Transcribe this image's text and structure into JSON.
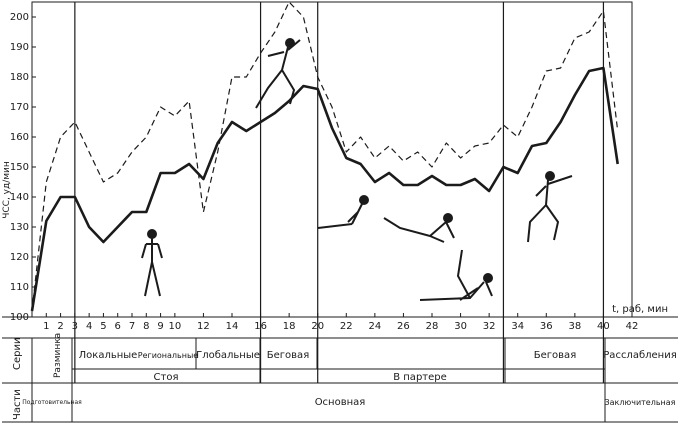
{
  "chart_data": {
    "type": "line",
    "ylabel": "ЧСС, уд/мин",
    "xlabel": "t, раб, мин",
    "ylim": [
      100,
      205
    ],
    "xlim": [
      0,
      42
    ],
    "yticks": [
      "100",
      "110",
      "120",
      "130",
      "140",
      "150",
      "160",
      "170",
      "180",
      "190",
      "200"
    ],
    "xticks": [
      "1",
      "2",
      "3",
      "4",
      "5",
      "6",
      "7",
      "8",
      "9",
      "10",
      "12",
      "14",
      "16",
      "18",
      "20",
      "22",
      "24",
      "26",
      "28",
      "30",
      "32",
      "34",
      "36",
      "38",
      "40",
      "42"
    ],
    "grid": false,
    "series": [
      {
        "style": "solid",
        "x": [
          0,
          1,
          2,
          3,
          4,
          5,
          6,
          7,
          8,
          9,
          10,
          11,
          12,
          13,
          14,
          15,
          16,
          17,
          18,
          19,
          20,
          21,
          22,
          23,
          24,
          25,
          26,
          27,
          28,
          29,
          30,
          31,
          32,
          33,
          34,
          35,
          36,
          37,
          38,
          39,
          40,
          41
        ],
        "values": [
          102,
          132,
          140,
          140,
          130,
          125,
          130,
          135,
          135,
          148,
          148,
          151,
          146,
          158,
          165,
          162,
          165,
          168,
          172,
          177,
          176,
          163,
          153,
          151,
          145,
          148,
          144,
          144,
          147,
          144,
          144,
          146,
          142,
          150,
          148,
          157,
          158,
          165,
          174,
          182,
          183,
          151
        ]
      },
      {
        "style": "dashed",
        "x": [
          0,
          1,
          2,
          3,
          4,
          5,
          6,
          7,
          8,
          9,
          10,
          11,
          12,
          13,
          14,
          15,
          16,
          17,
          18,
          19,
          20,
          21,
          22,
          23,
          24,
          25,
          26,
          27,
          28,
          29,
          30,
          31,
          32,
          33,
          34,
          35,
          36,
          37,
          38,
          39,
          40,
          41
        ],
        "values": [
          102,
          145,
          160,
          165,
          155,
          145,
          148,
          155,
          160,
          170,
          167,
          172,
          135,
          155,
          180,
          180,
          188,
          195,
          205,
          200,
          180,
          170,
          155,
          160,
          153,
          157,
          152,
          155,
          150,
          158,
          153,
          157,
          158,
          164,
          160,
          170,
          182,
          183,
          193,
          195,
          202,
          162
        ]
      }
    ],
    "phase_boundaries": [
      3,
      16,
      20,
      33,
      40
    ]
  },
  "table": {
    "row1_label": "Серии",
    "row2_label": "Части",
    "series_cells": [
      "Разминка",
      "Локальные",
      "Региональные",
      "Глобальные",
      "Беговая",
      "Беговая",
      "Расслабления"
    ],
    "series_stance": [
      "Стоя",
      "В партере"
    ],
    "parts_cells": [
      "Подготовительная",
      "Основная",
      "Заключительная"
    ]
  }
}
